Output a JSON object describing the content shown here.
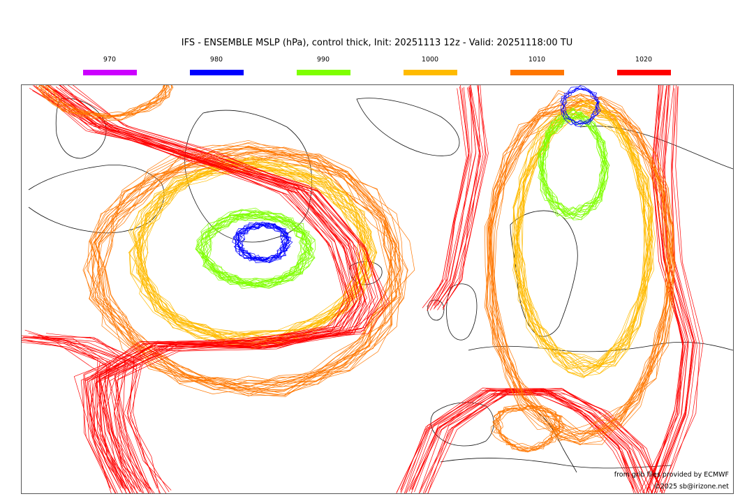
{
  "title": "IFS - ENSEMBLE MSLP (hPa), control thick, Init: 20251113 12z - Valid: 20251118:00 TU",
  "legend": [
    {
      "label": "970",
      "color": "#cc00ff"
    },
    {
      "label": "980",
      "color": "#0000ff"
    },
    {
      "label": "990",
      "color": "#7fff00"
    },
    {
      "label": "1000",
      "color": "#ffbb00"
    },
    {
      "label": "1010",
      "color": "#ff7700"
    },
    {
      "label": "1020",
      "color": "#ff0000"
    }
  ],
  "credits": {
    "source": "from grib files provided by ECMWF",
    "copyright": "©2025 sb@irizone.net"
  }
}
